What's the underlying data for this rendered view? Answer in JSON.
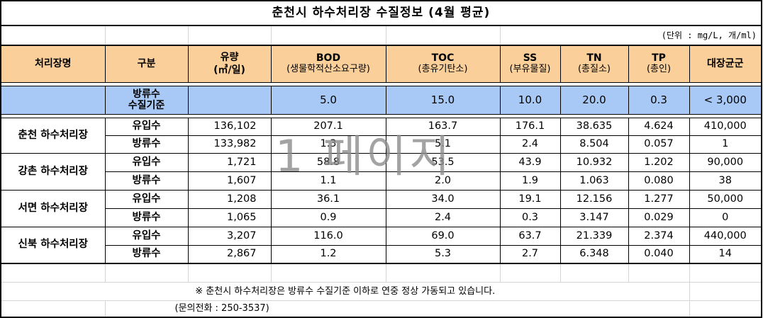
{
  "title": "춘천시 하수처리장 수질정보 (4월 평균)",
  "unit": "(단위 : mg/L, 개/ml)",
  "headers": [
    {
      "name": "처리장명",
      "sub": ""
    },
    {
      "name": "구분",
      "sub": ""
    },
    {
      "name": "유량",
      "sub": "(㎥/일)"
    },
    {
      "name": "BOD",
      "sub": "(생물학적산소요구량)"
    },
    {
      "name": "TOC",
      "sub": "(총유기탄소)"
    },
    {
      "name": "SS",
      "sub": "(부유물질)"
    },
    {
      "name": "TN",
      "sub": "(총질소)"
    },
    {
      "name": "TP",
      "sub": "(총인)"
    },
    {
      "name": "대장균군",
      "sub": ""
    }
  ],
  "standard": {
    "label_line1": "방류수",
    "label_line2": "수질기준",
    "flow": "",
    "bod": "5.0",
    "toc": "15.0",
    "ss": "10.0",
    "tn": "20.0",
    "tp": "0.3",
    "coliform": "< 3,000"
  },
  "plants": [
    {
      "name": "춘천 하수처리장",
      "rows": [
        {
          "kind": "유입수",
          "flow": "136,102",
          "bod": "207.1",
          "toc": "163.7",
          "ss": "176.1",
          "tn": "38.635",
          "tp": "4.624",
          "coliform": "410,000"
        },
        {
          "kind": "방류수",
          "flow": "133,982",
          "bod": "1.3",
          "toc": "5.1",
          "ss": "2.4",
          "tn": "8.504",
          "tp": "0.057",
          "coliform": "1"
        }
      ]
    },
    {
      "name": "강촌 하수처리장",
      "rows": [
        {
          "kind": "유입수",
          "flow": "1,721",
          "bod": "58.8",
          "toc": "53.5",
          "ss": "43.9",
          "tn": "10.932",
          "tp": "1.202",
          "coliform": "90,000"
        },
        {
          "kind": "방류수",
          "flow": "1,607",
          "bod": "1.1",
          "toc": "2.0",
          "ss": "1.9",
          "tn": "1.063",
          "tp": "0.080",
          "coliform": "38"
        }
      ]
    },
    {
      "name": "서면 하수처리장",
      "rows": [
        {
          "kind": "유입수",
          "flow": "1,208",
          "bod": "36.1",
          "toc": "34.0",
          "ss": "19.1",
          "tn": "12.156",
          "tp": "1.277",
          "coliform": "50,000"
        },
        {
          "kind": "방류수",
          "flow": "1,065",
          "bod": "0.9",
          "toc": "2.4",
          "ss": "0.3",
          "tn": "3.147",
          "tp": "0.029",
          "coliform": "0"
        }
      ]
    },
    {
      "name": "신북 하수처리장",
      "rows": [
        {
          "kind": "유입수",
          "flow": "3,207",
          "bod": "116.0",
          "toc": "69.0",
          "ss": "63.7",
          "tn": "21.339",
          "tp": "2.374",
          "coliform": "440,000"
        },
        {
          "kind": "방류수",
          "flow": "2,867",
          "bod": "1.2",
          "toc": "5.3",
          "ss": "2.7",
          "tn": "6.348",
          "tp": "0.040",
          "coliform": "14"
        }
      ]
    }
  ],
  "note": "※ 춘천시 하수처리장은 방류수 수질기준 이하로 연중 정상 가동되고 있습니다.",
  "contact": "(문의전화 : 250-3537)",
  "watermark": "1 페이지"
}
